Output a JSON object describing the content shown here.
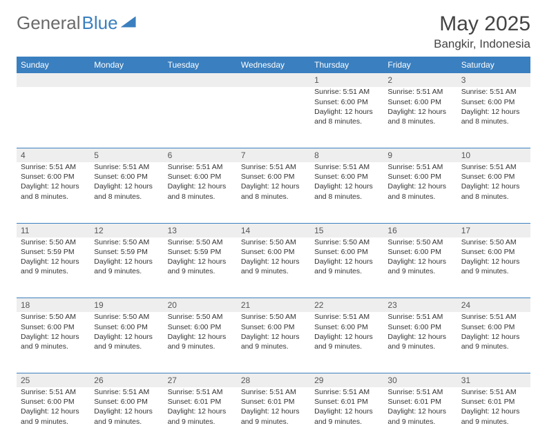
{
  "logo": {
    "text1": "General",
    "text2": "Blue"
  },
  "title": "May 2025",
  "location": "Bangkir, Indonesia",
  "colors": {
    "header_bg": "#3a7fbf",
    "header_text": "#ffffff",
    "daynum_bg": "#eeeeee",
    "row_border": "#3a7fbf",
    "body_text": "#333333",
    "logo_gray": "#6a6a6a",
    "background": "#ffffff"
  },
  "weekdays": [
    "Sunday",
    "Monday",
    "Tuesday",
    "Wednesday",
    "Thursday",
    "Friday",
    "Saturday"
  ],
  "weeks": [
    {
      "nums": [
        "",
        "",
        "",
        "",
        "1",
        "2",
        "3"
      ],
      "cells": [
        null,
        null,
        null,
        null,
        {
          "sunrise": "5:51 AM",
          "sunset": "6:00 PM",
          "daylight": "12 hours and 8 minutes."
        },
        {
          "sunrise": "5:51 AM",
          "sunset": "6:00 PM",
          "daylight": "12 hours and 8 minutes."
        },
        {
          "sunrise": "5:51 AM",
          "sunset": "6:00 PM",
          "daylight": "12 hours and 8 minutes."
        }
      ]
    },
    {
      "nums": [
        "4",
        "5",
        "6",
        "7",
        "8",
        "9",
        "10"
      ],
      "cells": [
        {
          "sunrise": "5:51 AM",
          "sunset": "6:00 PM",
          "daylight": "12 hours and 8 minutes."
        },
        {
          "sunrise": "5:51 AM",
          "sunset": "6:00 PM",
          "daylight": "12 hours and 8 minutes."
        },
        {
          "sunrise": "5:51 AM",
          "sunset": "6:00 PM",
          "daylight": "12 hours and 8 minutes."
        },
        {
          "sunrise": "5:51 AM",
          "sunset": "6:00 PM",
          "daylight": "12 hours and 8 minutes."
        },
        {
          "sunrise": "5:51 AM",
          "sunset": "6:00 PM",
          "daylight": "12 hours and 8 minutes."
        },
        {
          "sunrise": "5:51 AM",
          "sunset": "6:00 PM",
          "daylight": "12 hours and 8 minutes."
        },
        {
          "sunrise": "5:51 AM",
          "sunset": "6:00 PM",
          "daylight": "12 hours and 8 minutes."
        }
      ]
    },
    {
      "nums": [
        "11",
        "12",
        "13",
        "14",
        "15",
        "16",
        "17"
      ],
      "cells": [
        {
          "sunrise": "5:50 AM",
          "sunset": "5:59 PM",
          "daylight": "12 hours and 9 minutes."
        },
        {
          "sunrise": "5:50 AM",
          "sunset": "5:59 PM",
          "daylight": "12 hours and 9 minutes."
        },
        {
          "sunrise": "5:50 AM",
          "sunset": "5:59 PM",
          "daylight": "12 hours and 9 minutes."
        },
        {
          "sunrise": "5:50 AM",
          "sunset": "6:00 PM",
          "daylight": "12 hours and 9 minutes."
        },
        {
          "sunrise": "5:50 AM",
          "sunset": "6:00 PM",
          "daylight": "12 hours and 9 minutes."
        },
        {
          "sunrise": "5:50 AM",
          "sunset": "6:00 PM",
          "daylight": "12 hours and 9 minutes."
        },
        {
          "sunrise": "5:50 AM",
          "sunset": "6:00 PM",
          "daylight": "12 hours and 9 minutes."
        }
      ]
    },
    {
      "nums": [
        "18",
        "19",
        "20",
        "21",
        "22",
        "23",
        "24"
      ],
      "cells": [
        {
          "sunrise": "5:50 AM",
          "sunset": "6:00 PM",
          "daylight": "12 hours and 9 minutes."
        },
        {
          "sunrise": "5:50 AM",
          "sunset": "6:00 PM",
          "daylight": "12 hours and 9 minutes."
        },
        {
          "sunrise": "5:50 AM",
          "sunset": "6:00 PM",
          "daylight": "12 hours and 9 minutes."
        },
        {
          "sunrise": "5:50 AM",
          "sunset": "6:00 PM",
          "daylight": "12 hours and 9 minutes."
        },
        {
          "sunrise": "5:51 AM",
          "sunset": "6:00 PM",
          "daylight": "12 hours and 9 minutes."
        },
        {
          "sunrise": "5:51 AM",
          "sunset": "6:00 PM",
          "daylight": "12 hours and 9 minutes."
        },
        {
          "sunrise": "5:51 AM",
          "sunset": "6:00 PM",
          "daylight": "12 hours and 9 minutes."
        }
      ]
    },
    {
      "nums": [
        "25",
        "26",
        "27",
        "28",
        "29",
        "30",
        "31"
      ],
      "cells": [
        {
          "sunrise": "5:51 AM",
          "sunset": "6:00 PM",
          "daylight": "12 hours and 9 minutes."
        },
        {
          "sunrise": "5:51 AM",
          "sunset": "6:00 PM",
          "daylight": "12 hours and 9 minutes."
        },
        {
          "sunrise": "5:51 AM",
          "sunset": "6:01 PM",
          "daylight": "12 hours and 9 minutes."
        },
        {
          "sunrise": "5:51 AM",
          "sunset": "6:01 PM",
          "daylight": "12 hours and 9 minutes."
        },
        {
          "sunrise": "5:51 AM",
          "sunset": "6:01 PM",
          "daylight": "12 hours and 9 minutes."
        },
        {
          "sunrise": "5:51 AM",
          "sunset": "6:01 PM",
          "daylight": "12 hours and 9 minutes."
        },
        {
          "sunrise": "5:51 AM",
          "sunset": "6:01 PM",
          "daylight": "12 hours and 9 minutes."
        }
      ]
    }
  ],
  "labels": {
    "sunrise": "Sunrise: ",
    "sunset": "Sunset: ",
    "daylight": "Daylight: "
  }
}
